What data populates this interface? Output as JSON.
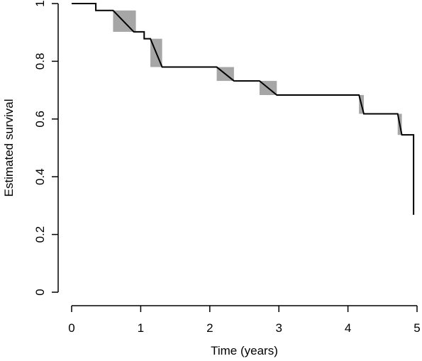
{
  "chart_data": {
    "type": "line",
    "xlabel": "Time (years)",
    "ylabel": "Estimated survival",
    "xlim": [
      0,
      5
    ],
    "ylim": [
      0,
      1
    ],
    "xticks": [
      0,
      1,
      2,
      3,
      4,
      5
    ],
    "yticks": [
      0,
      0.2,
      0.4,
      0.6,
      0.8,
      1
    ],
    "xtick_labels": [
      "0",
      "1",
      "2",
      "3",
      "4",
      "5"
    ],
    "ytick_labels": [
      "0",
      "0.2",
      "0.4",
      "0.6",
      "0.8",
      "1"
    ],
    "grid": false,
    "series": [
      {
        "style": "step",
        "color": "#000000",
        "points": [
          [
            0.0,
            1.0
          ],
          [
            0.35,
            1.0
          ],
          [
            0.35,
            0.976
          ],
          [
            0.6,
            0.976
          ],
          [
            0.9,
            0.902
          ],
          [
            1.05,
            0.902
          ],
          [
            1.05,
            0.878
          ],
          [
            1.14,
            0.878
          ],
          [
            1.31,
            0.78
          ],
          [
            2.1,
            0.78
          ],
          [
            2.35,
            0.732
          ],
          [
            2.72,
            0.732
          ],
          [
            2.97,
            0.683
          ],
          [
            4.16,
            0.683
          ],
          [
            4.23,
            0.618
          ],
          [
            4.72,
            0.618
          ],
          [
            4.78,
            0.545
          ],
          [
            4.95,
            0.545
          ],
          [
            4.95,
            0.268
          ]
        ]
      }
    ],
    "shaded_bands": {
      "color": "#a6a6a6",
      "bands": [
        {
          "x": [
            0.6,
            0.93
          ],
          "y": [
            0.902,
            0.976
          ]
        },
        {
          "x": [
            1.14,
            1.31
          ],
          "y": [
            0.78,
            0.878
          ]
        },
        {
          "x": [
            2.1,
            2.35
          ],
          "y": [
            0.732,
            0.78
          ]
        },
        {
          "x": [
            2.72,
            2.97
          ],
          "y": [
            0.683,
            0.732
          ]
        },
        {
          "x": [
            4.16,
            4.23
          ],
          "y": [
            0.618,
            0.683
          ]
        },
        {
          "x": [
            4.72,
            4.78
          ],
          "y": [
            0.545,
            0.618
          ]
        }
      ]
    }
  }
}
